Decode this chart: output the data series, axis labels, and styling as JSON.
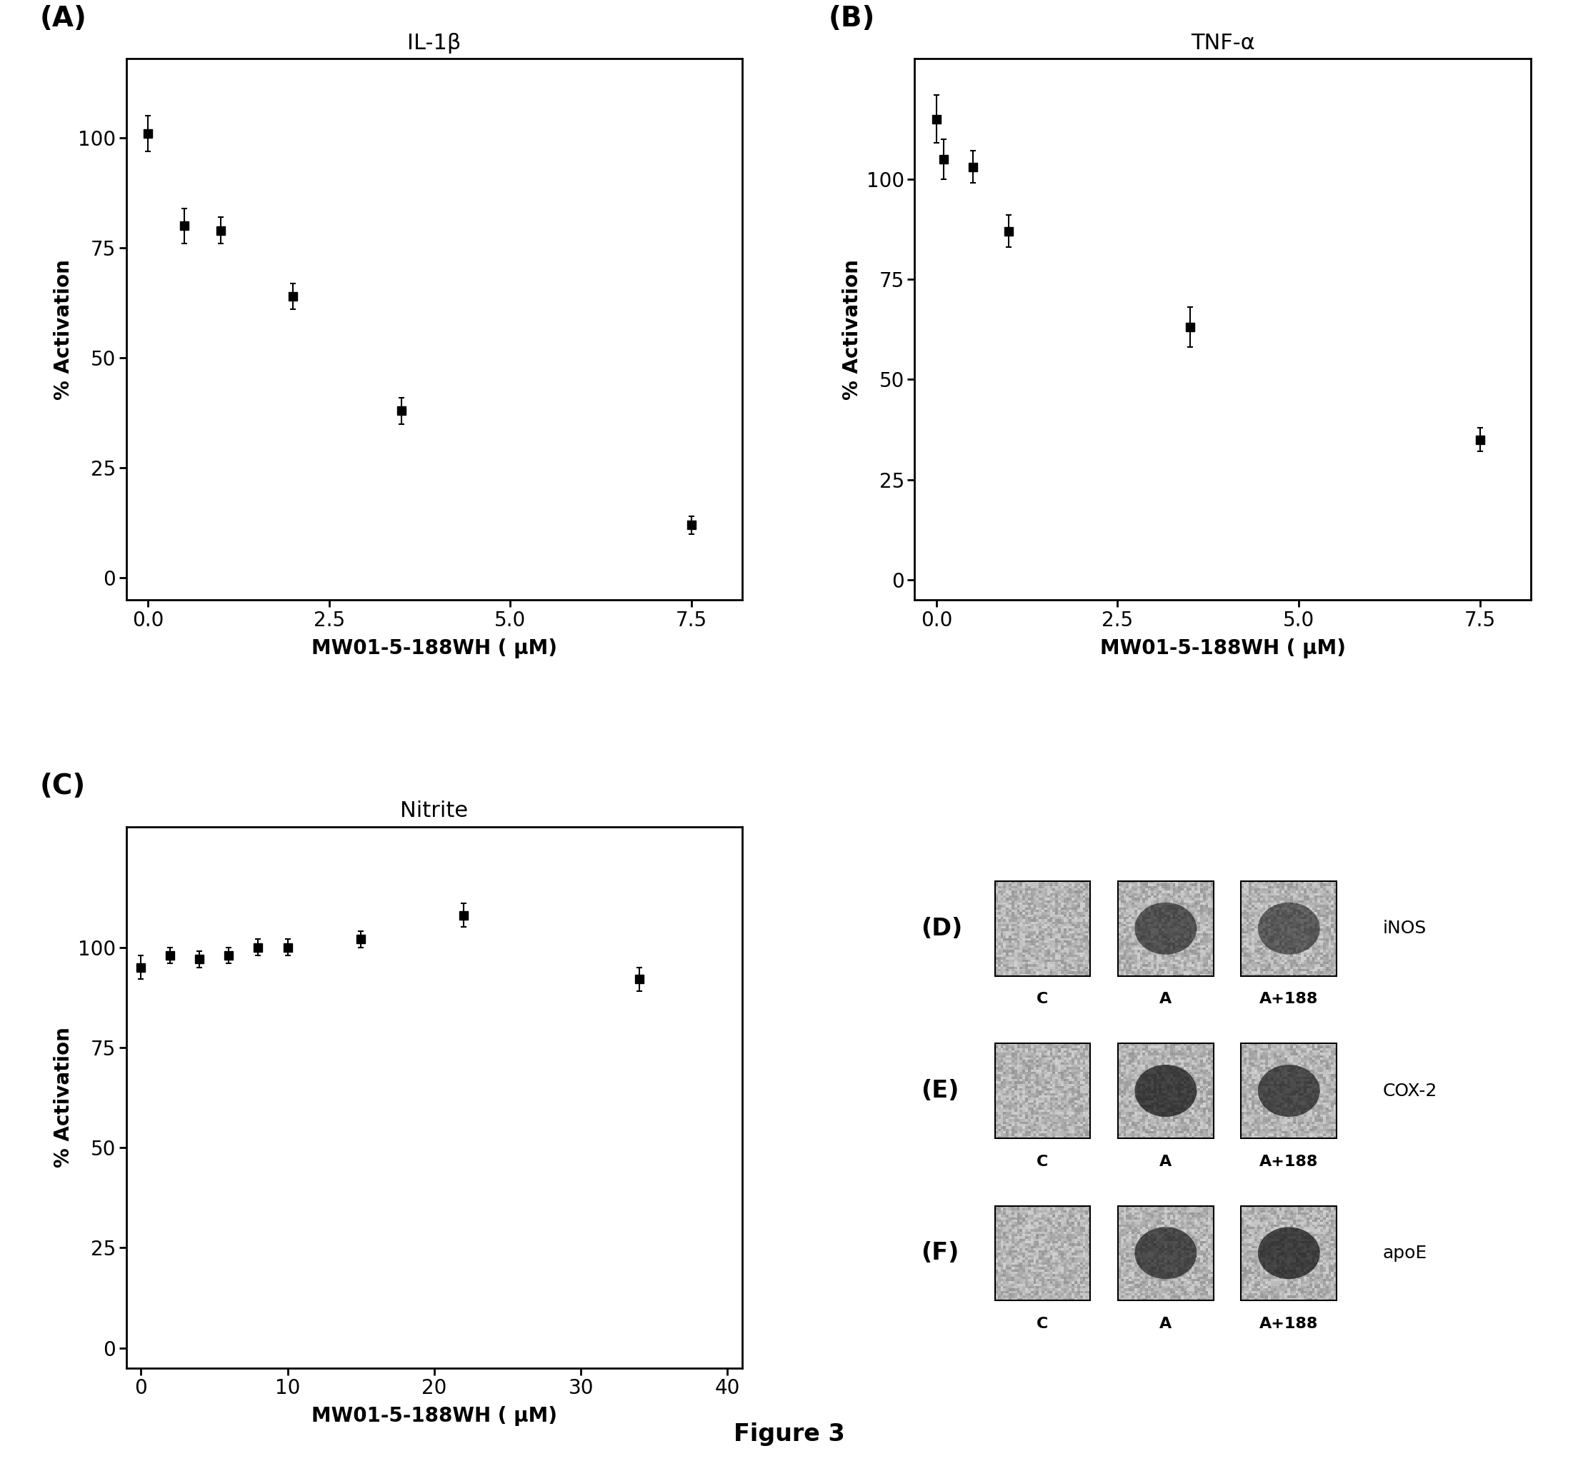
{
  "panel_A": {
    "title": "IL-1β",
    "label": "(A)",
    "x": [
      0.0,
      0.5,
      1.0,
      2.0,
      3.5,
      7.5
    ],
    "y": [
      101,
      80,
      79,
      64,
      38,
      12
    ],
    "yerr": [
      4,
      4,
      3,
      3,
      3,
      2
    ],
    "xticks": [
      0.0,
      2.5,
      5.0,
      7.5
    ],
    "yticks": [
      0,
      25,
      50,
      75,
      100
    ],
    "xlim": [
      -0.3,
      8.2
    ],
    "ylim": [
      -5,
      118
    ],
    "xlabel": "MW01-5-188WH ( μM)",
    "ylabel": "% Activation"
  },
  "panel_B": {
    "title": "TNF-α",
    "label": "(B)",
    "x": [
      0.0,
      0.1,
      0.5,
      1.0,
      3.5,
      7.5
    ],
    "y": [
      115,
      105,
      103,
      87,
      63,
      35
    ],
    "yerr": [
      6,
      5,
      4,
      4,
      5,
      3
    ],
    "xticks": [
      0.0,
      2.5,
      5.0,
      7.5
    ],
    "yticks": [
      0,
      25,
      50,
      75,
      100
    ],
    "xlim": [
      -0.3,
      8.2
    ],
    "ylim": [
      -5,
      130
    ],
    "xlabel": "MW01-5-188WH ( μM)",
    "ylabel": "% Activation"
  },
  "panel_C": {
    "title": "Nitrite",
    "label": "(C)",
    "x": [
      0,
      2,
      4,
      6,
      8,
      10,
      15,
      22,
      34
    ],
    "y": [
      95,
      98,
      97,
      98,
      100,
      100,
      102,
      108,
      92
    ],
    "yerr": [
      3,
      2,
      2,
      2,
      2,
      2,
      2,
      3,
      3
    ],
    "xticks": [
      0,
      10,
      20,
      30,
      40
    ],
    "yticks": [
      0,
      25,
      50,
      75,
      100
    ],
    "xlim": [
      -1,
      41
    ],
    "ylim": [
      -5,
      130
    ],
    "xlabel": "MW01-5-188WH ( μM)",
    "ylabel": "% Activation"
  },
  "blot_rows": [
    {
      "label": "(D)",
      "protein": "iNOS",
      "bg": [
        "#c8c0b0",
        "#c8c0b0",
        "#c0b8a8"
      ],
      "spot": [
        false,
        true,
        true
      ],
      "spot_size": [
        0,
        0.35,
        0.3
      ]
    },
    {
      "label": "(E)",
      "protein": "COX-2",
      "bg": [
        "#c0b8a8",
        "#c0b8a8",
        "#b8b0a0"
      ],
      "spot": [
        false,
        true,
        true
      ],
      "spot_size": [
        0,
        0.45,
        0.4
      ]
    },
    {
      "label": "(F)",
      "protein": "apoE",
      "bg": [
        "#c8c0b0",
        "#c0b8a8",
        "#b8b0a0"
      ],
      "spot": [
        false,
        true,
        true
      ],
      "spot_size": [
        0,
        0.4,
        0.45
      ]
    }
  ],
  "col_labels": [
    "C",
    "A",
    "A+188"
  ],
  "figure_label": "Figure 3",
  "bg_color": "#ffffff",
  "line_color": "#000000",
  "marker_style": "s",
  "marker_size": 9,
  "linewidth": 2.5
}
